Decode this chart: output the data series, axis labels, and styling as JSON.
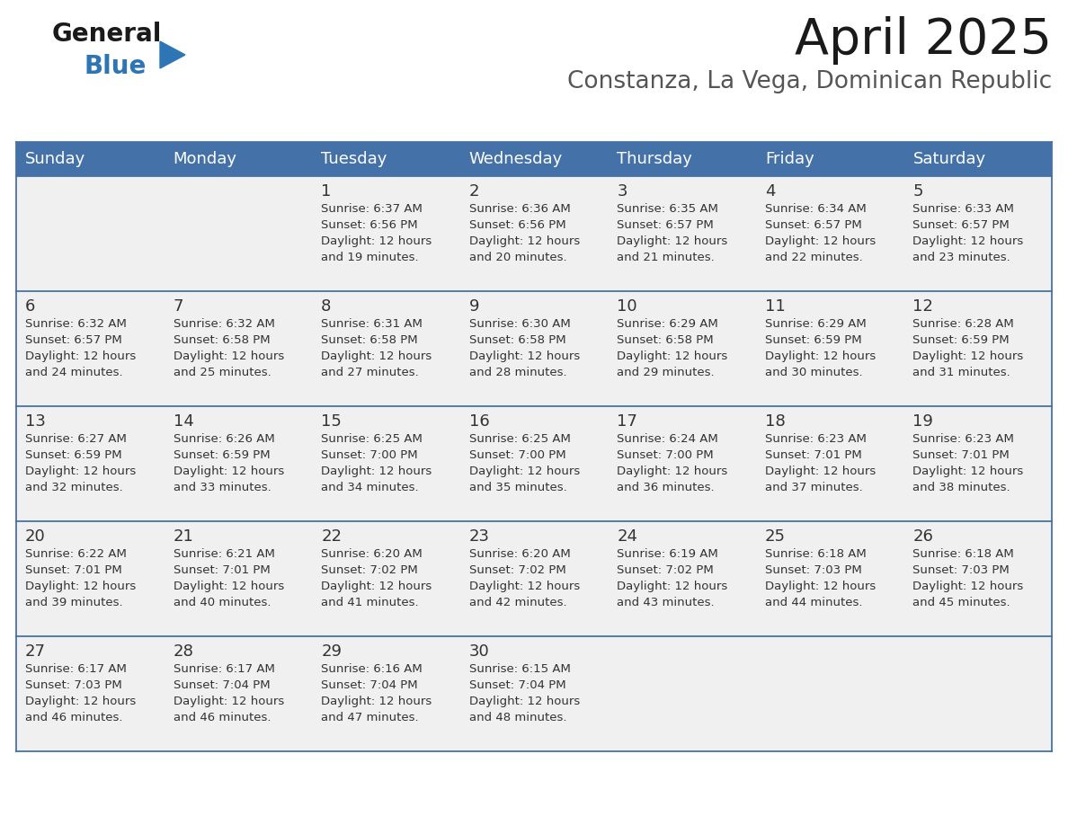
{
  "title": "April 2025",
  "subtitle": "Constanza, La Vega, Dominican Republic",
  "header_bg": "#4472a8",
  "header_text": "#ffffff",
  "row_bg": "#f0f0f0",
  "border_color": "#4472a8",
  "text_color": "#333333",
  "days_of_week": [
    "Sunday",
    "Monday",
    "Tuesday",
    "Wednesday",
    "Thursday",
    "Friday",
    "Saturday"
  ],
  "weeks": [
    [
      {
        "day": "",
        "info": ""
      },
      {
        "day": "",
        "info": ""
      },
      {
        "day": "1",
        "info": "Sunrise: 6:37 AM\nSunset: 6:56 PM\nDaylight: 12 hours\nand 19 minutes."
      },
      {
        "day": "2",
        "info": "Sunrise: 6:36 AM\nSunset: 6:56 PM\nDaylight: 12 hours\nand 20 minutes."
      },
      {
        "day": "3",
        "info": "Sunrise: 6:35 AM\nSunset: 6:57 PM\nDaylight: 12 hours\nand 21 minutes."
      },
      {
        "day": "4",
        "info": "Sunrise: 6:34 AM\nSunset: 6:57 PM\nDaylight: 12 hours\nand 22 minutes."
      },
      {
        "day": "5",
        "info": "Sunrise: 6:33 AM\nSunset: 6:57 PM\nDaylight: 12 hours\nand 23 minutes."
      }
    ],
    [
      {
        "day": "6",
        "info": "Sunrise: 6:32 AM\nSunset: 6:57 PM\nDaylight: 12 hours\nand 24 minutes."
      },
      {
        "day": "7",
        "info": "Sunrise: 6:32 AM\nSunset: 6:58 PM\nDaylight: 12 hours\nand 25 minutes."
      },
      {
        "day": "8",
        "info": "Sunrise: 6:31 AM\nSunset: 6:58 PM\nDaylight: 12 hours\nand 27 minutes."
      },
      {
        "day": "9",
        "info": "Sunrise: 6:30 AM\nSunset: 6:58 PM\nDaylight: 12 hours\nand 28 minutes."
      },
      {
        "day": "10",
        "info": "Sunrise: 6:29 AM\nSunset: 6:58 PM\nDaylight: 12 hours\nand 29 minutes."
      },
      {
        "day": "11",
        "info": "Sunrise: 6:29 AM\nSunset: 6:59 PM\nDaylight: 12 hours\nand 30 minutes."
      },
      {
        "day": "12",
        "info": "Sunrise: 6:28 AM\nSunset: 6:59 PM\nDaylight: 12 hours\nand 31 minutes."
      }
    ],
    [
      {
        "day": "13",
        "info": "Sunrise: 6:27 AM\nSunset: 6:59 PM\nDaylight: 12 hours\nand 32 minutes."
      },
      {
        "day": "14",
        "info": "Sunrise: 6:26 AM\nSunset: 6:59 PM\nDaylight: 12 hours\nand 33 minutes."
      },
      {
        "day": "15",
        "info": "Sunrise: 6:25 AM\nSunset: 7:00 PM\nDaylight: 12 hours\nand 34 minutes."
      },
      {
        "day": "16",
        "info": "Sunrise: 6:25 AM\nSunset: 7:00 PM\nDaylight: 12 hours\nand 35 minutes."
      },
      {
        "day": "17",
        "info": "Sunrise: 6:24 AM\nSunset: 7:00 PM\nDaylight: 12 hours\nand 36 minutes."
      },
      {
        "day": "18",
        "info": "Sunrise: 6:23 AM\nSunset: 7:01 PM\nDaylight: 12 hours\nand 37 minutes."
      },
      {
        "day": "19",
        "info": "Sunrise: 6:23 AM\nSunset: 7:01 PM\nDaylight: 12 hours\nand 38 minutes."
      }
    ],
    [
      {
        "day": "20",
        "info": "Sunrise: 6:22 AM\nSunset: 7:01 PM\nDaylight: 12 hours\nand 39 minutes."
      },
      {
        "day": "21",
        "info": "Sunrise: 6:21 AM\nSunset: 7:01 PM\nDaylight: 12 hours\nand 40 minutes."
      },
      {
        "day": "22",
        "info": "Sunrise: 6:20 AM\nSunset: 7:02 PM\nDaylight: 12 hours\nand 41 minutes."
      },
      {
        "day": "23",
        "info": "Sunrise: 6:20 AM\nSunset: 7:02 PM\nDaylight: 12 hours\nand 42 minutes."
      },
      {
        "day": "24",
        "info": "Sunrise: 6:19 AM\nSunset: 7:02 PM\nDaylight: 12 hours\nand 43 minutes."
      },
      {
        "day": "25",
        "info": "Sunrise: 6:18 AM\nSunset: 7:03 PM\nDaylight: 12 hours\nand 44 minutes."
      },
      {
        "day": "26",
        "info": "Sunrise: 6:18 AM\nSunset: 7:03 PM\nDaylight: 12 hours\nand 45 minutes."
      }
    ],
    [
      {
        "day": "27",
        "info": "Sunrise: 6:17 AM\nSunset: 7:03 PM\nDaylight: 12 hours\nand 46 minutes."
      },
      {
        "day": "28",
        "info": "Sunrise: 6:17 AM\nSunset: 7:04 PM\nDaylight: 12 hours\nand 46 minutes."
      },
      {
        "day": "29",
        "info": "Sunrise: 6:16 AM\nSunset: 7:04 PM\nDaylight: 12 hours\nand 47 minutes."
      },
      {
        "day": "30",
        "info": "Sunrise: 6:15 AM\nSunset: 7:04 PM\nDaylight: 12 hours\nand 48 minutes."
      },
      {
        "day": "",
        "info": ""
      },
      {
        "day": "",
        "info": ""
      },
      {
        "day": "",
        "info": ""
      }
    ]
  ],
  "logo_general_color": "#1a1a1a",
  "logo_blue_color": "#2e75b6",
  "logo_triangle_color": "#2e75b6",
  "title_color": "#1a1a1a",
  "subtitle_color": "#555555",
  "title_fontsize": 40,
  "subtitle_fontsize": 19,
  "header_fontsize": 13,
  "day_num_fontsize": 13,
  "cell_text_fontsize": 9.5
}
